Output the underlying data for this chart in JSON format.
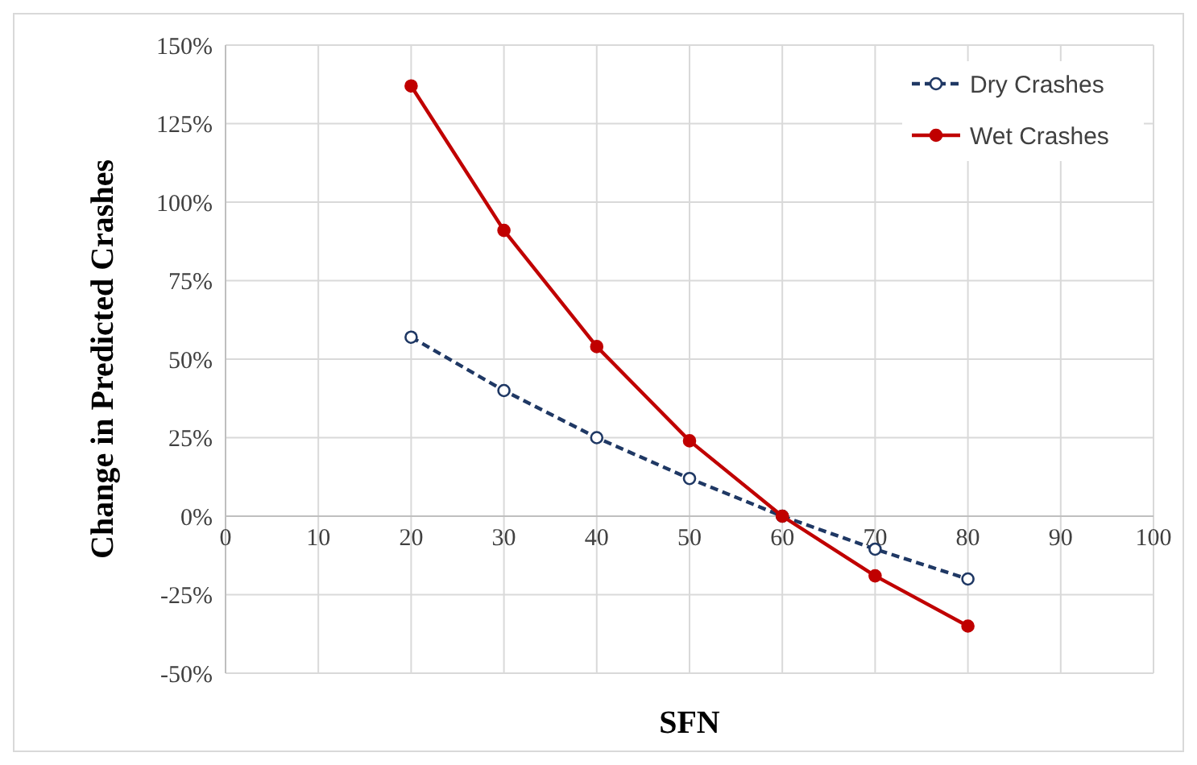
{
  "chart_data": {
    "type": "line",
    "xlabel": "SFN",
    "ylabel": "Change in Predicted Crashes",
    "x": [
      20,
      30,
      40,
      50,
      60,
      70,
      80
    ],
    "series": [
      {
        "name": "Dry Crashes",
        "color": "#1f3864",
        "values": [
          57,
          40,
          25,
          12,
          0,
          -10.5,
          -20
        ],
        "line_style": "dashed",
        "marker": "circle"
      },
      {
        "name": "Wet Crashes",
        "color": "#c00000",
        "values": [
          137,
          91,
          54,
          24,
          0,
          -19,
          -35
        ],
        "line_style": "solid",
        "marker": "circle"
      }
    ],
    "xlim": [
      0,
      100
    ],
    "xticks": [
      0,
      10,
      20,
      30,
      40,
      50,
      60,
      70,
      80,
      90,
      100
    ],
    "ylim": [
      -50,
      150
    ],
    "yticks": [
      {
        "value": -50,
        "label": "-50%"
      },
      {
        "value": -25,
        "label": "-25%"
      },
      {
        "value": 0,
        "label": "0%"
      },
      {
        "value": 25,
        "label": "25%"
      },
      {
        "value": 50,
        "label": "50%"
      },
      {
        "value": 75,
        "label": "75%"
      },
      {
        "value": 100,
        "label": "100%"
      },
      {
        "value": 125,
        "label": "125%"
      },
      {
        "value": 150,
        "label": "150%"
      }
    ],
    "grid": true,
    "legend": "top right"
  }
}
